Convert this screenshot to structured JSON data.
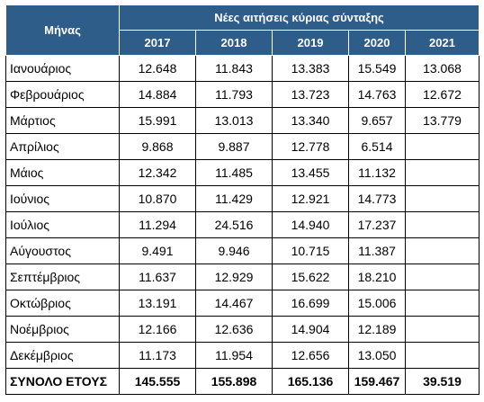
{
  "table": {
    "month_header": "Μήνας",
    "group_header": "Νέες αιτήσεις κύριας σύνταξης",
    "years": [
      "2017",
      "2018",
      "2019",
      "2020",
      "2021"
    ],
    "rows": [
      [
        "Ιανουάριος",
        "12.648",
        "11.843",
        "13.383",
        "15.549",
        "13.068"
      ],
      [
        "Φεβρουάριος",
        "14.884",
        "11.793",
        "13.723",
        "14.763",
        "12.672"
      ],
      [
        "Μάρτιος",
        "15.991",
        "13.013",
        "13.340",
        "9.657",
        "13.779"
      ],
      [
        "Απρίλιος",
        "9.868",
        "9.887",
        "12.778",
        "6.514",
        null
      ],
      [
        "Μάιος",
        "12.342",
        "11.485",
        "13.455",
        "11.132",
        null
      ],
      [
        "Ιούνιος",
        "10.870",
        "11.429",
        "12.921",
        "14.773",
        null
      ],
      [
        "Ιούλιος",
        "11.294",
        "24.516",
        "14.940",
        "17.237",
        null
      ],
      [
        "Αύγουστος",
        "9.491",
        "9.946",
        "10.715",
        "11.387",
        null
      ],
      [
        "Σεπτέμβριος",
        "11.637",
        "12.929",
        "15.622",
        "18.210",
        null
      ],
      [
        "Οκτώβριος",
        "13.191",
        "14.467",
        "16.699",
        "15.006",
        null
      ],
      [
        "Νοέμβριος",
        "12.166",
        "12.636",
        "14.904",
        "12.189",
        null
      ],
      [
        "Δεκέμβριος",
        "11.173",
        "11.954",
        "12.656",
        "13.050",
        null
      ]
    ],
    "total": [
      "ΣΥΝΟΛΟ ΕΤΟΥΣ",
      "145.555",
      "155.898",
      "165.136",
      "159.467",
      "39.519"
    ]
  }
}
